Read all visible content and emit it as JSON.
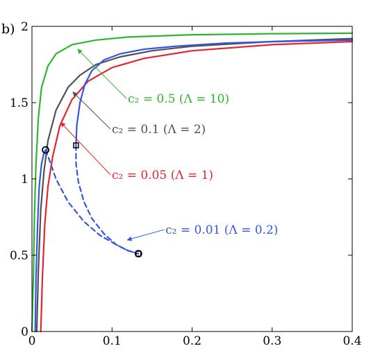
{
  "chart_data": {
    "type": "line",
    "panel_label": "b)",
    "xlabel": "",
    "ylabel": "",
    "xlim": [
      0,
      0.4
    ],
    "ylim": [
      0,
      2
    ],
    "x_ticks": [
      "0",
      "0.1",
      "0.2",
      "0.3",
      "0.4"
    ],
    "y_ticks": [
      "0",
      "0.5",
      "1",
      "1.5",
      "2"
    ],
    "x_tick_values": [
      0,
      0.1,
      0.2,
      0.3,
      0.4
    ],
    "y_tick_values": [
      0,
      0.5,
      1,
      1.5,
      2
    ],
    "grid": false,
    "series": [
      {
        "color": "#2db52d",
        "style": "solid",
        "x": [
          0.0,
          0.002,
          0.003,
          0.005,
          0.008,
          0.012,
          0.02,
          0.03,
          0.05,
          0.08,
          0.12,
          0.2,
          0.3,
          0.4
        ],
        "y": [
          0.0,
          0.4,
          0.75,
          1.1,
          1.4,
          1.6,
          1.74,
          1.82,
          1.88,
          1.91,
          1.93,
          1.945,
          1.952,
          1.955
        ]
      },
      {
        "color": "#505050",
        "style": "solid",
        "x": [
          0.006,
          0.008,
          0.011,
          0.015,
          0.02,
          0.03,
          0.045,
          0.06,
          0.08,
          0.11,
          0.15,
          0.2,
          0.3,
          0.4
        ],
        "y": [
          0.0,
          0.4,
          0.8,
          1.05,
          1.25,
          1.45,
          1.6,
          1.68,
          1.75,
          1.8,
          1.84,
          1.87,
          1.9,
          1.92
        ]
      },
      {
        "color": "#e3252d",
        "style": "solid",
        "x": [
          0.011,
          0.013,
          0.016,
          0.02,
          0.026,
          0.035,
          0.05,
          0.07,
          0.1,
          0.14,
          0.2,
          0.3,
          0.4
        ],
        "y": [
          0.0,
          0.35,
          0.7,
          0.95,
          1.15,
          1.35,
          1.52,
          1.64,
          1.73,
          1.79,
          1.84,
          1.88,
          1.9
        ]
      },
      {
        "color": "#3355e6",
        "style": "solid",
        "x": [
          0.004,
          0.005,
          0.007,
          0.009,
          0.012,
          0.015,
          0.017
        ],
        "y": [
          0.0,
          0.35,
          0.7,
          0.95,
          1.1,
          1.17,
          1.19
        ]
      },
      {
        "color": "#3355e6",
        "style": "solid",
        "x": [
          0.055,
          0.056,
          0.06,
          0.066,
          0.075,
          0.09,
          0.11,
          0.14,
          0.18,
          0.24,
          0.3,
          0.4
        ],
        "y": [
          1.22,
          1.35,
          1.5,
          1.62,
          1.71,
          1.78,
          1.82,
          1.85,
          1.87,
          1.89,
          1.9,
          1.91
        ]
      },
      {
        "color": "#3355e6",
        "style": "dashed",
        "x": [
          0.017,
          0.022,
          0.03,
          0.045,
          0.065,
          0.085,
          0.105,
          0.12,
          0.133
        ],
        "y": [
          1.19,
          1.12,
          1.0,
          0.85,
          0.72,
          0.63,
          0.57,
          0.53,
          0.51
        ]
      },
      {
        "color": "#3355e6",
        "style": "dashed",
        "x": [
          0.055,
          0.055,
          0.058,
          0.065,
          0.075,
          0.09,
          0.105,
          0.12,
          0.133
        ],
        "y": [
          1.22,
          1.1,
          0.98,
          0.85,
          0.74,
          0.64,
          0.57,
          0.53,
          0.51
        ]
      }
    ],
    "markers": [
      {
        "shape": "circle",
        "x": 0.017,
        "y": 1.19
      },
      {
        "shape": "square",
        "x": 0.055,
        "y": 1.22
      },
      {
        "shape": "circle",
        "x": 0.133,
        "y": 0.51
      },
      {
        "shape": "square",
        "x": 0.133,
        "y": 0.51
      }
    ],
    "annotations": [
      {
        "text": "c₂ = 0.5 (Λ = 10)",
        "color": "#2db52d",
        "text_x": 0.118,
        "text_y": 1.5,
        "arrow_to_x": 0.057,
        "arrow_to_y": 1.85
      },
      {
        "text": "c₂ = 0.1 (Λ = 2)",
        "color": "#505050",
        "text_x": 0.098,
        "text_y": 1.3,
        "arrow_to_x": 0.051,
        "arrow_to_y": 1.57
      },
      {
        "text": "c₂ = 0.05 (Λ = 1)",
        "color": "#e3252d",
        "text_x": 0.098,
        "text_y": 1.0,
        "arrow_to_x": 0.036,
        "arrow_to_y": 1.37
      },
      {
        "text": "c₂ = 0.01 (Λ = 0.2)",
        "color": "#3355e6",
        "text_x": 0.165,
        "text_y": 0.64,
        "arrow_to_x": 0.119,
        "arrow_to_y": 0.6
      }
    ]
  }
}
